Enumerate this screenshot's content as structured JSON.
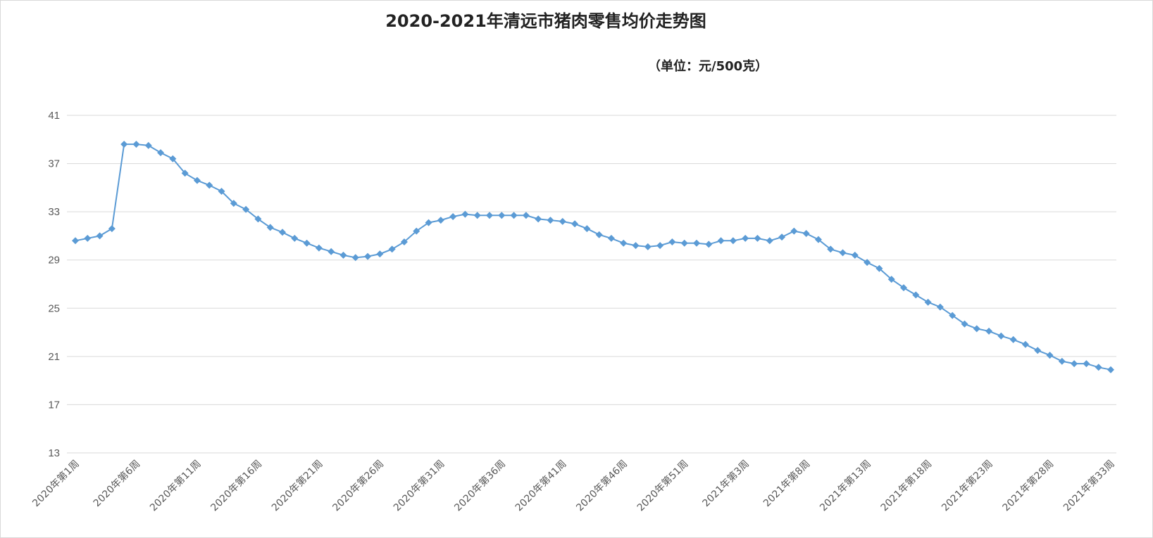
{
  "chart_data": {
    "type": "line",
    "title": "2020-2021年清远市猪肉零售均价走势图",
    "subtitle": "（单位：元/500克）",
    "ylim": [
      13,
      41
    ],
    "yticks": [
      13,
      17,
      21,
      25,
      29,
      33,
      37,
      41
    ],
    "grid": true,
    "x": [
      "2020年第1周",
      "2020年第2周",
      "2020年第3周",
      "2020年第4周",
      "2020年第5周",
      "2020年第6周",
      "2020年第7周",
      "2020年第8周",
      "2020年第9周",
      "2020年第10周",
      "2020年第11周",
      "2020年第12周",
      "2020年第13周",
      "2020年第14周",
      "2020年第15周",
      "2020年第16周",
      "2020年第17周",
      "2020年第18周",
      "2020年第19周",
      "2020年第20周",
      "2020年第21周",
      "2020年第22周",
      "2020年第23周",
      "2020年第24周",
      "2020年第25周",
      "2020年第26周",
      "2020年第27周",
      "2020年第28周",
      "2020年第29周",
      "2020年第30周",
      "2020年第31周",
      "2020年第32周",
      "2020年第33周",
      "2020年第34周",
      "2020年第35周",
      "2020年第36周",
      "2020年第37周",
      "2020年第38周",
      "2020年第39周",
      "2020年第40周",
      "2020年第41周",
      "2020年第42周",
      "2020年第43周",
      "2020年第44周",
      "2020年第45周",
      "2020年第46周",
      "2020年第47周",
      "2020年第48周",
      "2020年第49周",
      "2020年第50周",
      "2020年第51周",
      "2020年第52周",
      "2020年第53周",
      "2021年第1周",
      "2021年第2周",
      "2021年第3周",
      "2021年第4周",
      "2021年第5周",
      "2021年第6周",
      "2021年第7周",
      "2021年第8周",
      "2021年第9周",
      "2021年第10周",
      "2021年第11周",
      "2021年第12周",
      "2021年第13周",
      "2021年第14周",
      "2021年第15周",
      "2021年第16周",
      "2021年第17周",
      "2021年第18周",
      "2021年第19周",
      "2021年第20周",
      "2021年第21周",
      "2021年第22周",
      "2021年第23周",
      "2021年第24周",
      "2021年第25周",
      "2021年第26周",
      "2021年第27周",
      "2021年第28周",
      "2021年第29周",
      "2021年第30周",
      "2021年第31周",
      "2021年第32周",
      "2021年第33周"
    ],
    "tick_labels": [
      "2020年第1周",
      "2020年第6周",
      "2020年第11周",
      "2020年第16周",
      "2020年第21周",
      "2020年第26周",
      "2020年第31周",
      "2020年第36周",
      "2020年第41周",
      "2020年第46周",
      "2020年第51周",
      "2021年第3周",
      "2021年第8周",
      "2021年第13周",
      "2021年第18周",
      "2021年第23周",
      "2021年第28周",
      "2021年第33周"
    ],
    "tick_every": 5,
    "series": [
      {
        "color": "#5b9bd5",
        "marker": "diamond",
        "values": [
          30.6,
          30.8,
          31.0,
          31.6,
          38.6,
          38.6,
          38.5,
          37.9,
          37.4,
          36.2,
          35.6,
          35.2,
          34.7,
          33.7,
          33.2,
          32.4,
          31.7,
          31.3,
          30.8,
          30.4,
          30.0,
          29.7,
          29.4,
          29.2,
          29.3,
          29.5,
          29.9,
          30.5,
          31.4,
          32.1,
          32.3,
          32.6,
          32.8,
          32.7,
          32.7,
          32.7,
          32.7,
          32.7,
          32.4,
          32.3,
          32.2,
          32.0,
          31.6,
          31.1,
          30.8,
          30.4,
          30.2,
          30.1,
          30.2,
          30.5,
          30.4,
          30.4,
          30.3,
          30.6,
          30.6,
          30.8,
          30.8,
          30.6,
          30.9,
          31.4,
          31.2,
          30.7,
          29.9,
          29.6,
          29.4,
          28.8,
          28.3,
          27.4,
          26.7,
          26.1,
          25.5,
          25.1,
          24.4,
          23.7,
          23.3,
          23.1,
          22.7,
          22.4,
          22.0,
          21.5,
          21.1,
          20.6,
          20.4,
          20.4,
          20.1,
          19.9
        ]
      }
    ]
  }
}
